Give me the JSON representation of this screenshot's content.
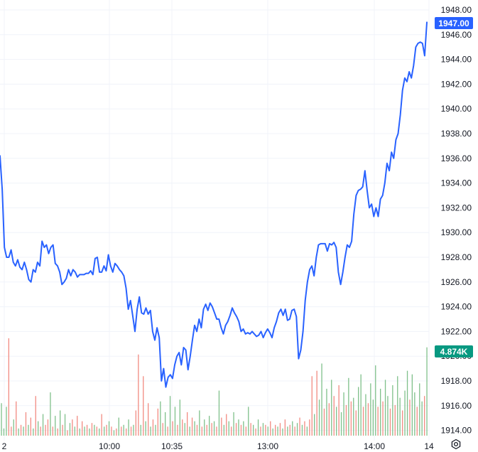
{
  "colors": {
    "line": "#2962ff",
    "grid": "#f0f3fa",
    "volume_up": "#7fc08a",
    "volume_down": "#f28b82",
    "price_badge": "#2962ff",
    "volume_badge": "#089981"
  },
  "icons": {
    "settings": "gear-icon"
  },
  "chart_data": {
    "type": "line",
    "ylim": [
      1913.5,
      1948.5
    ],
    "yticks": [
      "1948.00",
      "1946.00",
      "1944.00",
      "1942.00",
      "1940.00",
      "1938.00",
      "1936.00",
      "1934.00",
      "1932.00",
      "1930.00",
      "1928.00",
      "1926.00",
      "1924.00",
      "1922.00",
      "1920.00",
      "1918.00",
      "1916.00",
      "1914.00"
    ],
    "xticks": [
      "2",
      "10:00",
      "10:35",
      "13:00",
      "14:00",
      "14"
    ],
    "last_price_label": "1947.00",
    "volume_label": "4.874K",
    "series": [
      {
        "values": [
          1936.2,
          1933.5,
          1928.8,
          1928.0,
          1928.0,
          1928.6,
          1927.6,
          1927.3,
          1927.8,
          1927.2,
          1927.0,
          1927.6,
          1927.0,
          1926.2,
          1926.0,
          1927.0,
          1926.8,
          1927.6,
          1927.3,
          1929.3,
          1928.8,
          1929.0,
          1928.3,
          1928.8,
          1929.0,
          1927.5,
          1927.3,
          1926.8,
          1925.8,
          1926.0,
          1926.3,
          1927.0,
          1926.5,
          1927.0,
          1926.8,
          1926.4,
          1926.6,
          1926.6,
          1926.6,
          1926.7,
          1926.7,
          1926.9,
          1926.6,
          1927.9,
          1928.0,
          1926.8,
          1926.8,
          1927.3,
          1926.9,
          1928.2,
          1927.3,
          1926.8,
          1927.5,
          1927.3,
          1927.0,
          1926.8,
          1926.5,
          1925.5,
          1923.8,
          1924.5,
          1923.3,
          1922.0,
          1923.8,
          1924.8,
          1923.5,
          1923.4,
          1923.9,
          1923.4,
          1923.7,
          1922.0,
          1921.3,
          1922.3,
          1921.5,
          1918.0,
          1919.0,
          1917.5,
          1918.3,
          1918.5,
          1918.2,
          1919.3,
          1920.0,
          1920.3,
          1919.3,
          1920.7,
          1920.5,
          1918.9,
          1920.0,
          1921.3,
          1922.5,
          1922.0,
          1923.0,
          1922.3,
          1923.8,
          1924.2,
          1923.7,
          1924.3,
          1924.0,
          1923.5,
          1923.0,
          1923.0,
          1922.3,
          1921.8,
          1922.5,
          1922.8,
          1923.3,
          1923.9,
          1923.5,
          1923.2,
          1922.8,
          1922.0,
          1922.2,
          1921.8,
          1921.9,
          1921.8,
          1922.0,
          1921.8,
          1921.6,
          1921.7,
          1922.0,
          1921.5,
          1921.9,
          1922.2,
          1921.9,
          1921.5,
          1922.3,
          1922.8,
          1923.5,
          1923.8,
          1923.3,
          1923.8,
          1922.9,
          1923.0,
          1923.7,
          1923.8,
          1923.2,
          1919.8,
          1920.5,
          1922.0,
          1924.5,
          1926.0,
          1927.0,
          1927.3,
          1926.5,
          1928.0,
          1929.0,
          1929.1,
          1929.1,
          1929.1,
          1928.5,
          1929.1,
          1929.0,
          1929.2,
          1928.8,
          1926.8,
          1925.8,
          1926.8,
          1928.0,
          1929.0,
          1928.8,
          1929.3,
          1931.5,
          1933.0,
          1933.4,
          1933.5,
          1933.7,
          1935.0,
          1933.4,
          1932.0,
          1932.3,
          1931.3,
          1932.0,
          1931.3,
          1932.7,
          1933.0,
          1934.0,
          1935.6,
          1935.0,
          1936.5,
          1936.0,
          1937.5,
          1938.0,
          1939.5,
          1941.5,
          1942.5,
          1942.2,
          1943.0,
          1942.5,
          1943.5,
          1945.0,
          1945.3,
          1945.4,
          1945.3,
          1944.3,
          1947.0
        ]
      }
    ],
    "volume": [
      {
        "v": 1.8,
        "up": true
      },
      {
        "v": 0.4,
        "up": true
      },
      {
        "v": 1.6,
        "up": true
      },
      {
        "v": 5.4,
        "up": false
      },
      {
        "v": 0.5,
        "up": false
      },
      {
        "v": 0.9,
        "up": true
      },
      {
        "v": 1.9,
        "up": false
      },
      {
        "v": 0.4,
        "up": true
      },
      {
        "v": 0.6,
        "up": false
      },
      {
        "v": 0.5,
        "up": true
      },
      {
        "v": 1.3,
        "up": false
      },
      {
        "v": 0.6,
        "up": true
      },
      {
        "v": 1.0,
        "up": false
      },
      {
        "v": 0.4,
        "up": true
      },
      {
        "v": 2.2,
        "up": false
      },
      {
        "v": 0.8,
        "up": true
      },
      {
        "v": 0.5,
        "up": false
      },
      {
        "v": 1.2,
        "up": true
      },
      {
        "v": 0.6,
        "up": false
      },
      {
        "v": 0.9,
        "up": false
      },
      {
        "v": 2.4,
        "up": true
      },
      {
        "v": 0.5,
        "up": false
      },
      {
        "v": 1.1,
        "up": true
      },
      {
        "v": 0.4,
        "up": false
      },
      {
        "v": 1.4,
        "up": true
      },
      {
        "v": 0.6,
        "up": false
      },
      {
        "v": 1.2,
        "up": true
      },
      {
        "v": 0.3,
        "up": false
      },
      {
        "v": 0.7,
        "up": true
      },
      {
        "v": 0.9,
        "up": false
      },
      {
        "v": 0.5,
        "up": true
      },
      {
        "v": 1.1,
        "up": false
      },
      {
        "v": 0.4,
        "up": true
      },
      {
        "v": 0.8,
        "up": false
      },
      {
        "v": 0.5,
        "up": true
      },
      {
        "v": 0.6,
        "up": false
      },
      {
        "v": 0.4,
        "up": true
      },
      {
        "v": 0.7,
        "up": false
      },
      {
        "v": 0.6,
        "up": true
      },
      {
        "v": 0.5,
        "up": false
      },
      {
        "v": 0.4,
        "up": true
      },
      {
        "v": 1.2,
        "up": false
      },
      {
        "v": 0.5,
        "up": true
      },
      {
        "v": 0.6,
        "up": false
      },
      {
        "v": 0.8,
        "up": true
      },
      {
        "v": 0.5,
        "up": false
      },
      {
        "v": 0.3,
        "up": true
      },
      {
        "v": 0.4,
        "up": false
      },
      {
        "v": 1.0,
        "up": true
      },
      {
        "v": 0.5,
        "up": false
      },
      {
        "v": 0.6,
        "up": true
      },
      {
        "v": 0.4,
        "up": false
      },
      {
        "v": 0.9,
        "up": true
      },
      {
        "v": 0.5,
        "up": false
      },
      {
        "v": 0.6,
        "up": true
      },
      {
        "v": 1.4,
        "up": false
      },
      {
        "v": 4.5,
        "up": false
      },
      {
        "v": 0.6,
        "up": true
      },
      {
        "v": 3.3,
        "up": false
      },
      {
        "v": 0.8,
        "up": true
      },
      {
        "v": 1.8,
        "up": false
      },
      {
        "v": 0.5,
        "up": true
      },
      {
        "v": 0.9,
        "up": false
      },
      {
        "v": 0.6,
        "up": true
      },
      {
        "v": 1.5,
        "up": false
      },
      {
        "v": 1.9,
        "up": true
      },
      {
        "v": 0.7,
        "up": false
      },
      {
        "v": 1.3,
        "up": true
      },
      {
        "v": 0.5,
        "up": false
      },
      {
        "v": 2.2,
        "up": true
      },
      {
        "v": 0.8,
        "up": false
      },
      {
        "v": 1.6,
        "up": true
      },
      {
        "v": 0.6,
        "up": false
      },
      {
        "v": 2.0,
        "up": true
      },
      {
        "v": 0.9,
        "up": false
      },
      {
        "v": 0.7,
        "up": true
      },
      {
        "v": 1.3,
        "up": false
      },
      {
        "v": 0.5,
        "up": true
      },
      {
        "v": 1.0,
        "up": false
      },
      {
        "v": 0.8,
        "up": true
      },
      {
        "v": 0.6,
        "up": false
      },
      {
        "v": 1.4,
        "up": true
      },
      {
        "v": 0.5,
        "up": false
      },
      {
        "v": 0.9,
        "up": true
      },
      {
        "v": 0.6,
        "up": false
      },
      {
        "v": 1.1,
        "up": true
      },
      {
        "v": 0.7,
        "up": false
      },
      {
        "v": 0.8,
        "up": true
      },
      {
        "v": 0.5,
        "up": false
      },
      {
        "v": 2.5,
        "up": true
      },
      {
        "v": 1.0,
        "up": false
      },
      {
        "v": 0.6,
        "up": true
      },
      {
        "v": 1.2,
        "up": false
      },
      {
        "v": 0.8,
        "up": true
      },
      {
        "v": 0.5,
        "up": false
      },
      {
        "v": 1.3,
        "up": true
      },
      {
        "v": 0.7,
        "up": false
      },
      {
        "v": 0.9,
        "up": true
      },
      {
        "v": 0.6,
        "up": false
      },
      {
        "v": 0.8,
        "up": true
      },
      {
        "v": 0.5,
        "up": false
      },
      {
        "v": 1.6,
        "up": true
      },
      {
        "v": 0.7,
        "up": false
      },
      {
        "v": 0.6,
        "up": true
      },
      {
        "v": 0.4,
        "up": false
      },
      {
        "v": 0.9,
        "up": true
      },
      {
        "v": 0.5,
        "up": false
      },
      {
        "v": 0.7,
        "up": true
      },
      {
        "v": 0.6,
        "up": false
      },
      {
        "v": 0.5,
        "up": true
      },
      {
        "v": 0.8,
        "up": false
      },
      {
        "v": 0.4,
        "up": true
      },
      {
        "v": 0.6,
        "up": false
      },
      {
        "v": 0.5,
        "up": true
      },
      {
        "v": 0.7,
        "up": false
      },
      {
        "v": 0.4,
        "up": true
      },
      {
        "v": 0.9,
        "up": false
      },
      {
        "v": 0.5,
        "up": true
      },
      {
        "v": 0.6,
        "up": false
      },
      {
        "v": 0.8,
        "up": true
      },
      {
        "v": 0.5,
        "up": false
      },
      {
        "v": 0.7,
        "up": true
      },
      {
        "v": 1.0,
        "up": false
      },
      {
        "v": 0.6,
        "up": true
      },
      {
        "v": 0.8,
        "up": false
      },
      {
        "v": 0.5,
        "up": true
      },
      {
        "v": 0.9,
        "up": false
      },
      {
        "v": 3.3,
        "up": false
      },
      {
        "v": 1.2,
        "up": true
      },
      {
        "v": 3.6,
        "up": false
      },
      {
        "v": 2.0,
        "up": true
      },
      {
        "v": 4.0,
        "up": true
      },
      {
        "v": 1.5,
        "up": false
      },
      {
        "v": 2.6,
        "up": true
      },
      {
        "v": 1.8,
        "up": false
      },
      {
        "v": 3.1,
        "up": true
      },
      {
        "v": 2.2,
        "up": false
      },
      {
        "v": 1.6,
        "up": true
      },
      {
        "v": 2.8,
        "up": false
      },
      {
        "v": 1.3,
        "up": true
      },
      {
        "v": 2.4,
        "up": true
      },
      {
        "v": 1.7,
        "up": false
      },
      {
        "v": 3.2,
        "up": true
      },
      {
        "v": 1.9,
        "up": false
      },
      {
        "v": 2.1,
        "up": true
      },
      {
        "v": 1.4,
        "up": false
      },
      {
        "v": 2.7,
        "up": true
      },
      {
        "v": 3.4,
        "up": true
      },
      {
        "v": 1.6,
        "up": false
      },
      {
        "v": 2.3,
        "up": true
      },
      {
        "v": 1.8,
        "up": false
      },
      {
        "v": 2.9,
        "up": true
      },
      {
        "v": 2.0,
        "up": true
      },
      {
        "v": 3.9,
        "up": true
      },
      {
        "v": 1.6,
        "up": false
      },
      {
        "v": 2.6,
        "up": true
      },
      {
        "v": 1.9,
        "up": false
      },
      {
        "v": 3.1,
        "up": true
      },
      {
        "v": 2.2,
        "up": true
      },
      {
        "v": 1.5,
        "up": false
      },
      {
        "v": 2.8,
        "up": true
      },
      {
        "v": 1.7,
        "up": false
      },
      {
        "v": 3.3,
        "up": true
      },
      {
        "v": 2.1,
        "up": true
      },
      {
        "v": 1.4,
        "up": false
      },
      {
        "v": 2.5,
        "up": true
      },
      {
        "v": 3.6,
        "up": true
      },
      {
        "v": 2.0,
        "up": false
      },
      {
        "v": 3.4,
        "up": true
      },
      {
        "v": 2.4,
        "up": true
      },
      {
        "v": 1.6,
        "up": false
      },
      {
        "v": 2.9,
        "up": true
      },
      {
        "v": 1.9,
        "up": true
      },
      {
        "v": 2.2,
        "up": false
      },
      {
        "v": 4.9,
        "up": true
      }
    ]
  }
}
